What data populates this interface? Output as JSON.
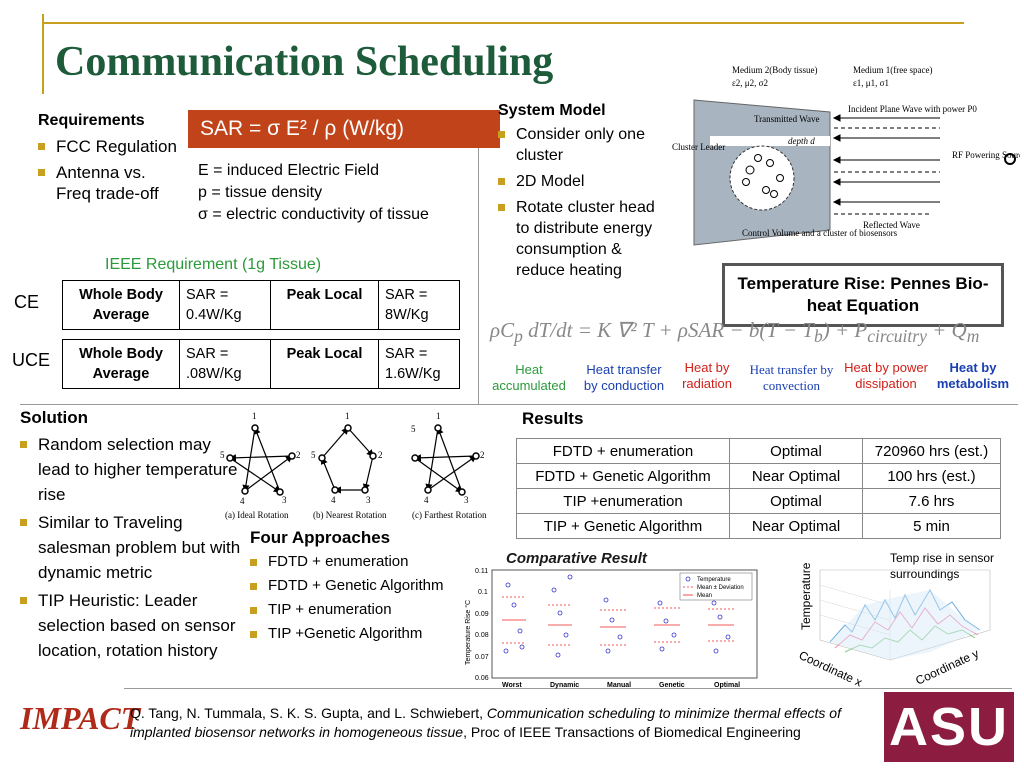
{
  "title": "Communication Scheduling",
  "requirements": {
    "heading": "Requirements",
    "items": [
      "FCC Regulation",
      "Antenna vs. Freq trade-off"
    ]
  },
  "sar": {
    "formula": "SAR = σ E² / ρ (W/kg)",
    "defs": [
      "E = induced Electric Field",
      "p = tissue density",
      "σ = electric conductivity of tissue"
    ]
  },
  "ieee": {
    "title": "IEEE Requirement (1g Tissue)",
    "rows": [
      {
        "label": "CE",
        "wb": "Whole Body Average",
        "wb_val": "SAR = 0.4W/Kg",
        "pl": "Peak Local",
        "pl_val": "SAR = 8W/Kg"
      },
      {
        "label": "UCE",
        "wb": "Whole Body Average",
        "wb_val": "SAR = .08W/Kg",
        "pl": "Peak Local",
        "pl_val": "SAR = 1.6W/Kg"
      }
    ]
  },
  "system_model": {
    "heading": "System Model",
    "items": [
      "Consider only one cluster",
      "2D Model",
      "Rotate cluster head to distribute energy consumption & reduce heating"
    ]
  },
  "diagram": {
    "medium2": "Medium 2(Body tissue)",
    "medium2_params": "ε2, μ2, σ2",
    "medium1": "Medium 1(free space)",
    "medium1_params": "ε1, μ1, σ1",
    "incident": "Incident Plane Wave with power P0",
    "transmitted": "Transmitted Wave",
    "depth": "depth d",
    "cluster_leader": "Cluster Leader",
    "rf_source": "RF Powering Source",
    "reflected": "Reflected Wave",
    "control_volume": "Control Volume and a cluster of biosensors"
  },
  "pennes": {
    "title": "Temperature Rise: Pennes Bio-heat Equation",
    "terms": [
      {
        "text": "Heat accumulated",
        "color": "#2a9a3a"
      },
      {
        "text": "Heat transfer by conduction",
        "color": "#1a3fb0"
      },
      {
        "text": "Heat by radiation",
        "color": "#d0201a"
      },
      {
        "text": "Heat transfer by convection",
        "color": "#1a3fb0"
      },
      {
        "text": "Heat by power dissipation",
        "color": "#d0201a"
      },
      {
        "text": "Heat by metabolism",
        "color": "#1a3fb0"
      }
    ]
  },
  "solution": {
    "heading": "Solution",
    "items": [
      "Random selection may lead to higher temperature rise",
      "Similar to Traveling salesman problem but with dynamic metric",
      "TIP Heuristic: Leader selection based on sensor location, rotation history"
    ]
  },
  "rotations": {
    "captions": [
      "(a) Ideal Rotation",
      "(b) Nearest Rotation",
      "(c) Farthest Rotation"
    ],
    "node_labels": [
      "1",
      "2",
      "3",
      "4",
      "5"
    ]
  },
  "approaches": {
    "heading": "Four Approaches",
    "items": [
      "FDTD + enumeration",
      "FDTD + Genetic Algorithm",
      "TIP + enumeration",
      "TIP +Genetic Algorithm"
    ]
  },
  "results": {
    "heading": "Results",
    "rows": [
      [
        "FDTD + enumeration",
        "Optimal",
        "720960 hrs (est.)"
      ],
      [
        "FDTD + Genetic Algorithm",
        "Near Optimal",
        "100 hrs (est.)"
      ],
      [
        "TIP +enumeration",
        "Optimal",
        "7.6 hrs"
      ],
      [
        "TIP + Genetic Algorithm",
        "Near Optimal",
        "5 min"
      ]
    ]
  },
  "comparative": {
    "title": "Comparative Result",
    "ylabel": "Temperature Rise °C",
    "yticks": [
      "0.11",
      "0.1",
      "0.09",
      "0.08",
      "0.07",
      "0.06"
    ],
    "categories": [
      "Worst",
      "Dynamic",
      "Manual",
      "Genetic",
      "Optimal"
    ],
    "legend": [
      "Temperature",
      "Mean ± Deviation",
      "Mean"
    ]
  },
  "surface": {
    "caption": "Temp rise in sensor surroundings",
    "zlabel": "Temperature",
    "xlabel": "Coordinate x",
    "ylabel": "Coordinate y"
  },
  "citation": {
    "authors": "Q. Tang, N. Tummala, S. K. S. Gupta, and L. Schwiebert, ",
    "title": "Communication scheduling to minimize thermal effects of implanted biosensor networks in homogeneous tissue",
    "venue": ", Proc of IEEE Transactions of Biomedical Engineering"
  },
  "logos": {
    "impact": "IMPACT",
    "asu": "ASU"
  }
}
